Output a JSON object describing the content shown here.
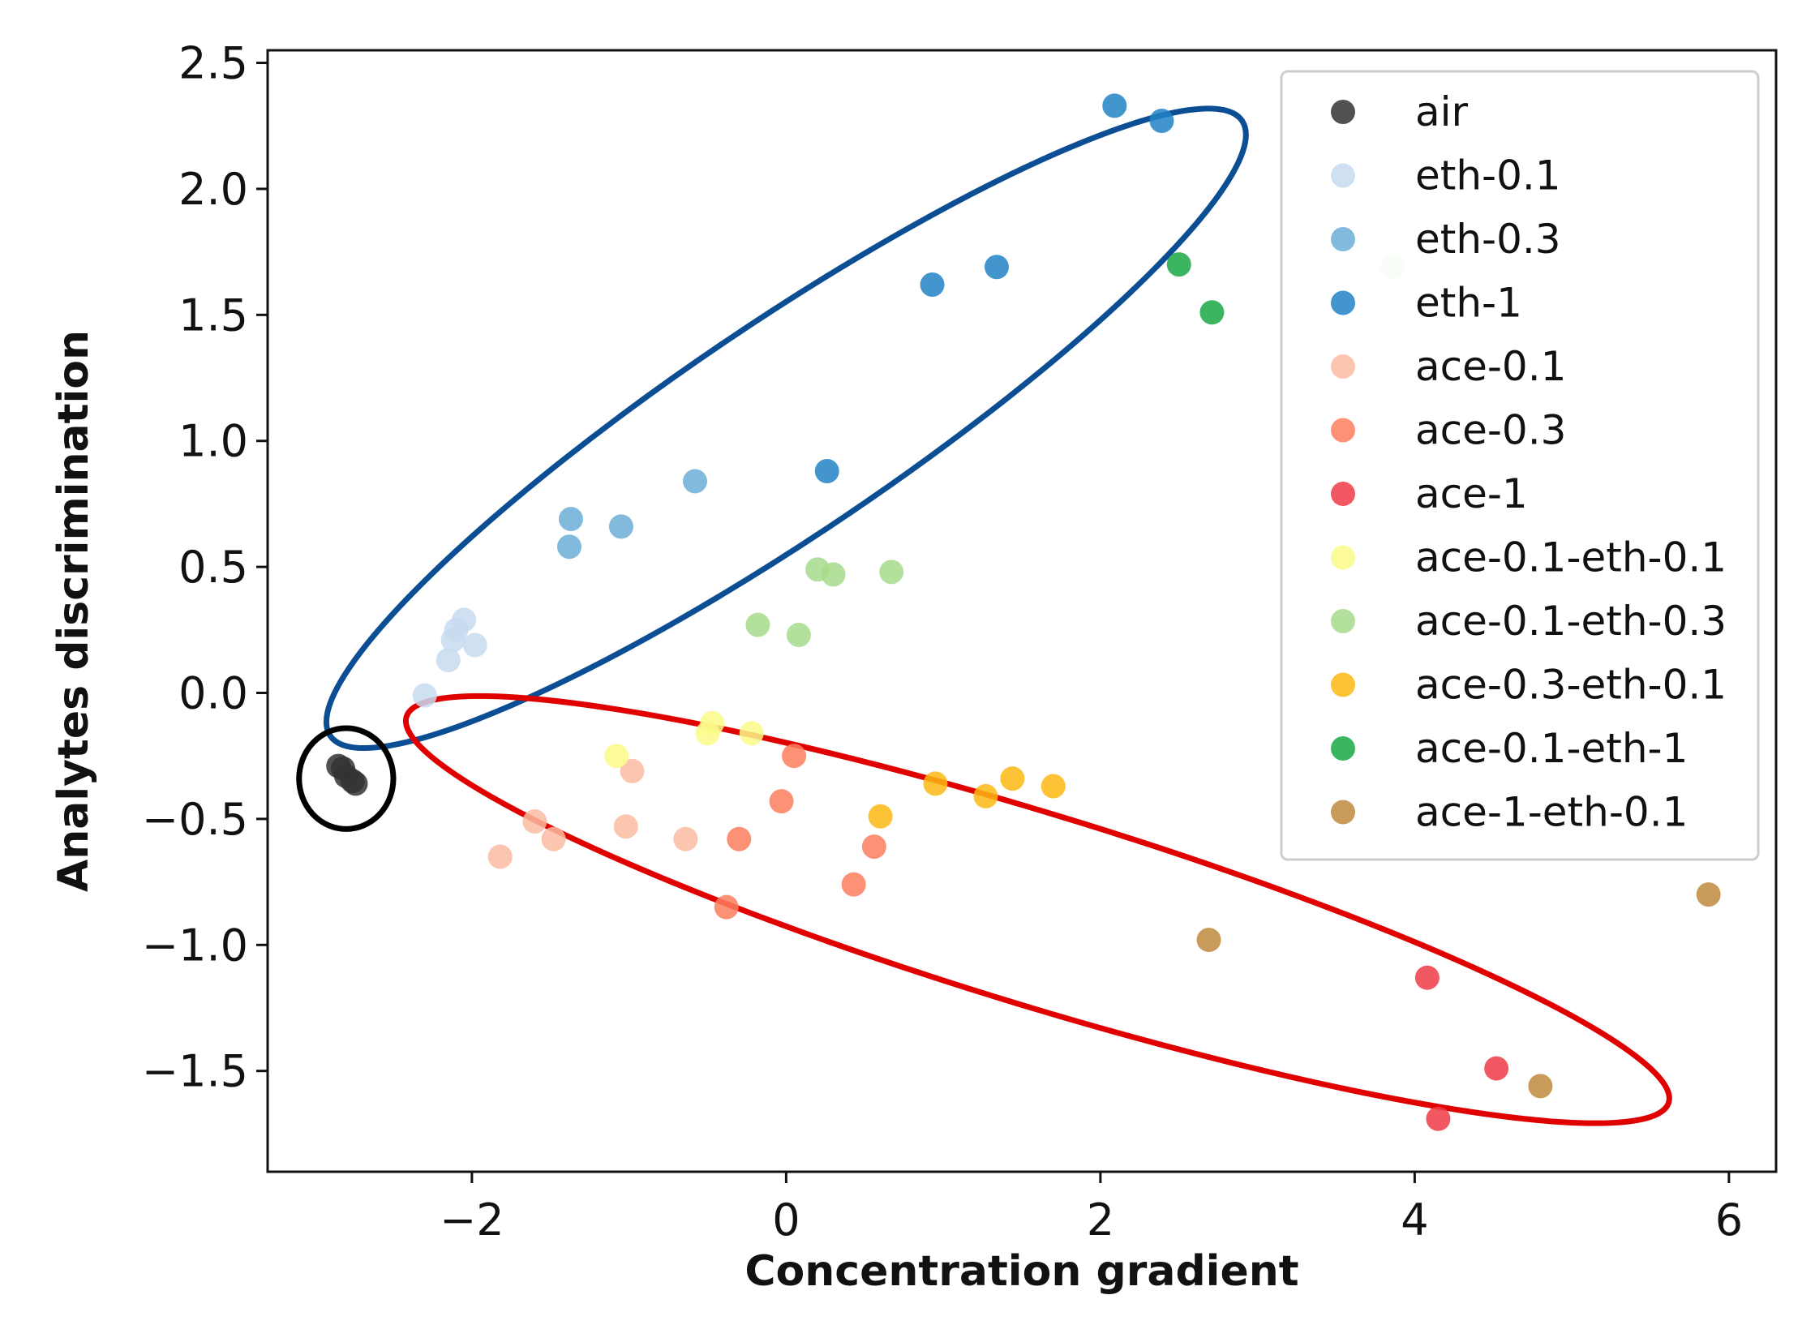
{
  "chart_data": {
    "type": "scatter",
    "title": "",
    "xlabel": "Concentration gradient",
    "ylabel": "Analytes discrimination",
    "xlim": [
      -3.3,
      6.3
    ],
    "ylim": [
      -1.9,
      2.55
    ],
    "xticks": [
      -2,
      0,
      2,
      4,
      6
    ],
    "xtick_labels": [
      "−2",
      "0",
      "2",
      "4",
      "6"
    ],
    "yticks": [
      -1.5,
      -1.0,
      -0.5,
      0.0,
      0.5,
      1.0,
      1.5,
      2.0,
      2.5
    ],
    "ytick_labels": [
      "−1.5",
      "−1.0",
      "−0.5",
      "0.0",
      "0.5",
      "1.0",
      "1.5",
      "2.0",
      "2.5"
    ],
    "grid": false,
    "legend_position": "top-right",
    "series": [
      {
        "name": "air",
        "color": "#333333",
        "points": [
          [
            -2.85,
            -0.29
          ],
          [
            -2.82,
            -0.3
          ],
          [
            -2.8,
            -0.33
          ],
          [
            -2.76,
            -0.35
          ],
          [
            -2.74,
            -0.36
          ]
        ]
      },
      {
        "name": "eth-0.1",
        "color": "#c6dbef",
        "points": [
          [
            -2.05,
            0.29
          ],
          [
            -2.1,
            0.25
          ],
          [
            -2.12,
            0.21
          ],
          [
            -1.98,
            0.19
          ],
          [
            -2.15,
            0.13
          ],
          [
            -2.3,
            -0.01
          ]
        ]
      },
      {
        "name": "eth-0.3",
        "color": "#6baed6",
        "points": [
          [
            -1.37,
            0.69
          ],
          [
            -1.38,
            0.58
          ],
          [
            -1.05,
            0.66
          ],
          [
            -0.58,
            0.84
          ]
        ]
      },
      {
        "name": "eth-1",
        "color": "#2182c4",
        "points": [
          [
            2.09,
            2.33
          ],
          [
            2.39,
            2.27
          ],
          [
            1.34,
            1.69
          ],
          [
            0.93,
            1.62
          ],
          [
            0.26,
            0.88
          ]
        ]
      },
      {
        "name": "ace-0.1",
        "color": "#fcbba1",
        "points": [
          [
            -1.6,
            -0.51
          ],
          [
            -1.48,
            -0.58
          ],
          [
            -1.82,
            -0.65
          ],
          [
            -0.98,
            -0.31
          ],
          [
            -1.02,
            -0.53
          ],
          [
            -0.64,
            -0.58
          ]
        ]
      },
      {
        "name": "ace-0.3",
        "color": "#fb7e5e",
        "points": [
          [
            0.05,
            -0.25
          ],
          [
            -0.03,
            -0.43
          ],
          [
            0.56,
            -0.61
          ],
          [
            -0.3,
            -0.58
          ],
          [
            0.43,
            -0.76
          ],
          [
            -0.38,
            -0.85
          ]
        ]
      },
      {
        "name": "ace-1",
        "color": "#ef3b45",
        "points": [
          [
            4.08,
            -1.13
          ],
          [
            4.52,
            -1.49
          ],
          [
            4.15,
            -1.69
          ]
        ]
      },
      {
        "name": "ace-0.1-eth-0.1",
        "color": "#fafa88",
        "points": [
          [
            -0.47,
            -0.12
          ],
          [
            -0.5,
            -0.16
          ],
          [
            -0.22,
            -0.16
          ],
          [
            -1.08,
            -0.25
          ]
        ]
      },
      {
        "name": "ace-0.1-eth-0.3",
        "color": "#a6dc8c",
        "points": [
          [
            0.2,
            0.49
          ],
          [
            0.3,
            0.47
          ],
          [
            0.67,
            0.48
          ],
          [
            -0.18,
            0.27
          ],
          [
            0.08,
            0.23
          ],
          [
            3.86,
            1.69
          ]
        ]
      },
      {
        "name": "ace-0.3-eth-0.1",
        "color": "#fdb813",
        "points": [
          [
            0.95,
            -0.36
          ],
          [
            1.44,
            -0.34
          ],
          [
            1.27,
            -0.41
          ],
          [
            1.7,
            -0.37
          ],
          [
            0.6,
            -0.49
          ]
        ]
      },
      {
        "name": "ace-0.1-eth-1",
        "color": "#1aa845",
        "points": [
          [
            2.5,
            1.7
          ],
          [
            2.71,
            1.51
          ]
        ]
      },
      {
        "name": "ace-1-eth-0.1",
        "color": "#c08a3e",
        "points": [
          [
            5.87,
            -0.8
          ],
          [
            2.69,
            -0.98
          ],
          [
            4.8,
            -1.56
          ]
        ]
      }
    ],
    "annotations": [
      {
        "shape": "ellipse",
        "color": "#0b4e94",
        "label": "",
        "center": [
          0.0,
          1.05
        ],
        "rx": 3.5,
        "ry": 0.42,
        "rotation_deg": -34
      },
      {
        "shape": "ellipse",
        "color": "#e00000",
        "label": "",
        "center": [
          1.6,
          -0.86
        ],
        "rx": 4.2,
        "ry": 0.38,
        "rotation_deg": 17
      },
      {
        "shape": "ellipse",
        "color": "#000000",
        "label": "",
        "center": [
          -2.8,
          -0.34
        ],
        "rx": 0.3,
        "ry": 0.2,
        "rotation_deg": 0
      }
    ]
  }
}
